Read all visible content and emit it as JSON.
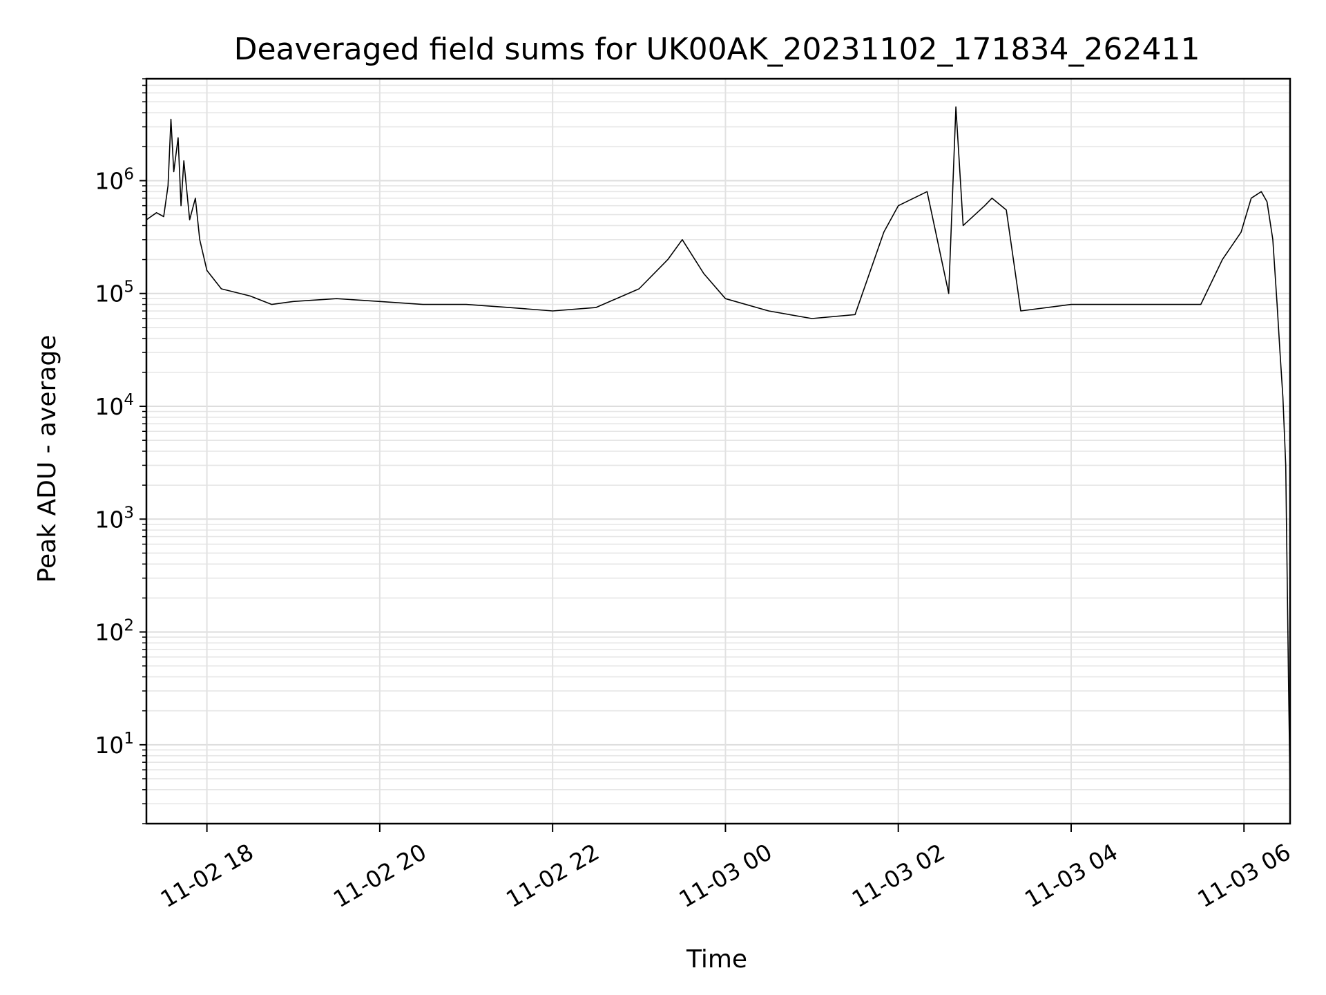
{
  "chart_data": {
    "type": "line",
    "title": "Deaveraged field sums for UK00AK_20231102_171834_262411",
    "xlabel": "Time",
    "ylabel": "Peak ADU - average",
    "yscale": "log",
    "grid": true,
    "xlim": [
      "2023-11-02 17:18",
      "2023-11-03 06:32"
    ],
    "ylim": [
      2,
      8000000
    ],
    "x_ticks": [
      {
        "value": "2023-11-02 18:00",
        "label": "11-02 18"
      },
      {
        "value": "2023-11-02 20:00",
        "label": "11-02 20"
      },
      {
        "value": "2023-11-02 22:00",
        "label": "11-02 22"
      },
      {
        "value": "2023-11-03 00:00",
        "label": "11-03 00"
      },
      {
        "value": "2023-11-03 02:00",
        "label": "11-03 02"
      },
      {
        "value": "2023-11-03 04:00",
        "label": "11-03 04"
      },
      {
        "value": "2023-11-03 06:00",
        "label": "11-03 06"
      }
    ],
    "y_ticks": [
      {
        "value": 10,
        "base": "10",
        "exp": "1"
      },
      {
        "value": 100,
        "base": "10",
        "exp": "2"
      },
      {
        "value": 1000,
        "base": "10",
        "exp": "3"
      },
      {
        "value": 10000,
        "base": "10",
        "exp": "4"
      },
      {
        "value": 100000,
        "base": "10",
        "exp": "5"
      },
      {
        "value": 1000000,
        "base": "10",
        "exp": "6"
      }
    ],
    "series": [
      {
        "color": "#000000",
        "points": [
          [
            "2023-11-02 17:18",
            450000
          ],
          [
            "2023-11-02 17:25",
            520000
          ],
          [
            "2023-11-02 17:30",
            480000
          ],
          [
            "2023-11-02 17:33",
            900000
          ],
          [
            "2023-11-02 17:35",
            3500000
          ],
          [
            "2023-11-02 17:37",
            1200000
          ],
          [
            "2023-11-02 17:40",
            2400000
          ],
          [
            "2023-11-02 17:42",
            600000
          ],
          [
            "2023-11-02 17:44",
            1500000
          ],
          [
            "2023-11-02 17:48",
            450000
          ],
          [
            "2023-11-02 17:52",
            700000
          ],
          [
            "2023-11-02 17:55",
            300000
          ],
          [
            "2023-11-02 18:00",
            160000
          ],
          [
            "2023-11-02 18:10",
            110000
          ],
          [
            "2023-11-02 18:30",
            95000
          ],
          [
            "2023-11-02 18:45",
            80000
          ],
          [
            "2023-11-02 19:00",
            85000
          ],
          [
            "2023-11-02 19:30",
            90000
          ],
          [
            "2023-11-02 20:00",
            85000
          ],
          [
            "2023-11-02 20:30",
            80000
          ],
          [
            "2023-11-02 21:00",
            80000
          ],
          [
            "2023-11-02 21:30",
            75000
          ],
          [
            "2023-11-02 22:00",
            70000
          ],
          [
            "2023-11-02 22:30",
            75000
          ],
          [
            "2023-11-02 23:00",
            110000
          ],
          [
            "2023-11-02 23:20",
            200000
          ],
          [
            "2023-11-02 23:30",
            300000
          ],
          [
            "2023-11-02 23:45",
            150000
          ],
          [
            "2023-11-03 00:00",
            90000
          ],
          [
            "2023-11-03 00:30",
            70000
          ],
          [
            "2023-11-03 01:00",
            60000
          ],
          [
            "2023-11-03 01:30",
            65000
          ],
          [
            "2023-11-03 01:50",
            350000
          ],
          [
            "2023-11-03 02:00",
            600000
          ],
          [
            "2023-11-03 02:20",
            800000
          ],
          [
            "2023-11-03 02:35",
            100000
          ],
          [
            "2023-11-03 02:40",
            4500000
          ],
          [
            "2023-11-03 02:45",
            400000
          ],
          [
            "2023-11-03 03:00",
            600000
          ],
          [
            "2023-11-03 03:05",
            700000
          ],
          [
            "2023-11-03 03:15",
            550000
          ],
          [
            "2023-11-03 03:25",
            70000
          ],
          [
            "2023-11-03 04:00",
            80000
          ],
          [
            "2023-11-03 04:30",
            80000
          ],
          [
            "2023-11-03 05:00",
            80000
          ],
          [
            "2023-11-03 05:30",
            80000
          ],
          [
            "2023-11-03 05:45",
            200000
          ],
          [
            "2023-11-03 05:58",
            350000
          ],
          [
            "2023-11-03 06:05",
            700000
          ],
          [
            "2023-11-03 06:12",
            800000
          ],
          [
            "2023-11-03 06:16",
            650000
          ],
          [
            "2023-11-03 06:20",
            300000
          ],
          [
            "2023-11-03 06:23",
            80000
          ],
          [
            "2023-11-03 06:25",
            30000
          ],
          [
            "2023-11-03 06:27",
            12000
          ],
          [
            "2023-11-03 06:29",
            3000
          ],
          [
            "2023-11-03 06:30",
            300
          ],
          [
            "2023-11-03 06:31",
            30
          ],
          [
            "2023-11-03 06:32",
            4
          ]
        ]
      }
    ]
  }
}
